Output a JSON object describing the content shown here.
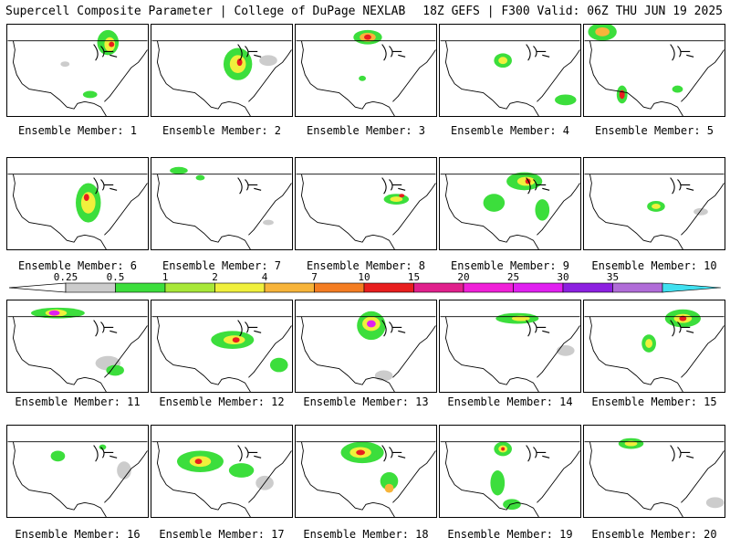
{
  "header": {
    "left_title": "Supercell Composite Parameter | College of DuPage NEXLAB",
    "right_title": "18Z GEFS | F300 Valid: 06Z THU JUN 19 2025"
  },
  "colorbar": {
    "ticks": [
      "0.25",
      "0.5",
      "1",
      "2",
      "4",
      "7",
      "10",
      "15",
      "20",
      "25",
      "30",
      "35"
    ],
    "colors": [
      "#cccccc",
      "#3cde3c",
      "#a8e838",
      "#f0f03c",
      "#f7b43a",
      "#f47d22",
      "#e81e1e",
      "#e0208c",
      "#f020d8",
      "#e020f0",
      "#8c20e0",
      "#b06cd8",
      "#40e0f0"
    ]
  },
  "panels": [
    {
      "label": "Ensemble Member: 1"
    },
    {
      "label": "Ensemble Member: 2"
    },
    {
      "label": "Ensemble Member: 3"
    },
    {
      "label": "Ensemble Member: 4"
    },
    {
      "label": "Ensemble Member: 5"
    },
    {
      "label": "Ensemble Member: 6"
    },
    {
      "label": "Ensemble Member: 7"
    },
    {
      "label": "Ensemble Member: 8"
    },
    {
      "label": "Ensemble Member: 9"
    },
    {
      "label": "Ensemble Member: 10"
    },
    {
      "label": "Ensemble Member: 11"
    },
    {
      "label": "Ensemble Member: 12"
    },
    {
      "label": "Ensemble Member: 13"
    },
    {
      "label": "Ensemble Member: 14"
    },
    {
      "label": "Ensemble Member: 15"
    },
    {
      "label": "Ensemble Member: 16"
    },
    {
      "label": "Ensemble Member: 17"
    },
    {
      "label": "Ensemble Member: 18"
    },
    {
      "label": "Ensemble Member: 19"
    },
    {
      "label": "Ensemble Member: 20"
    }
  ]
}
